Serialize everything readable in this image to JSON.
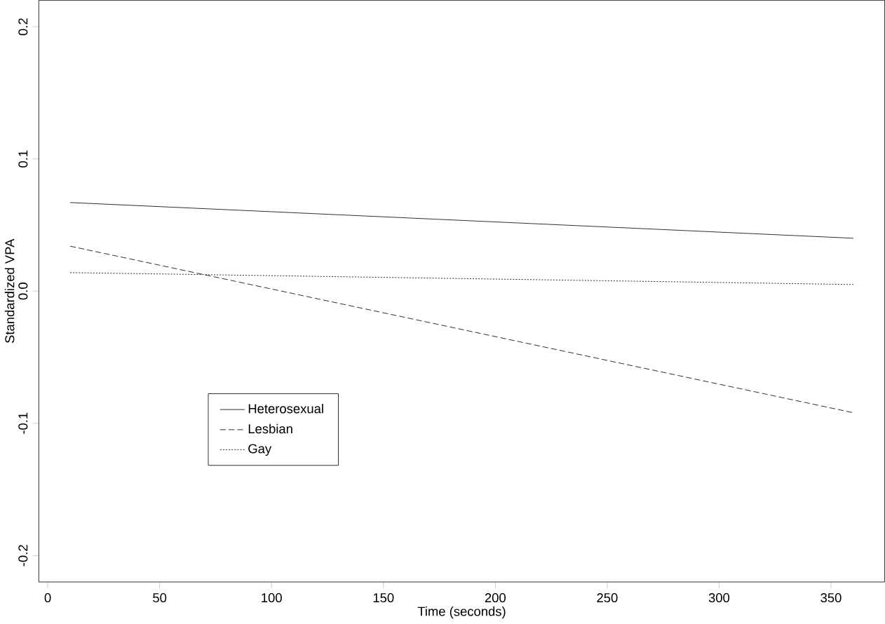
{
  "chart_data": {
    "type": "line",
    "xlabel": "Time (seconds)",
    "ylabel": "Standardized VPA",
    "x": [
      10,
      360
    ],
    "series": [
      {
        "name": "Heterosexual",
        "color": "#000000",
        "line_style": "solid",
        "values": [
          0.067,
          0.04
        ]
      },
      {
        "name": "Lesbian",
        "color": "#000000",
        "line_style": "dashed",
        "values": [
          0.034,
          -0.092
        ]
      },
      {
        "name": "Gay",
        "color": "#000000",
        "line_style": "dotted",
        "values": [
          0.014,
          0.005
        ]
      }
    ],
    "xlim": [
      -4,
      374
    ],
    "ylim": [
      -0.22,
      0.22
    ],
    "xticks": [
      0,
      50,
      100,
      150,
      200,
      250,
      300,
      350
    ],
    "yticks": [
      {
        "value": -0.2,
        "label": "-0.2"
      },
      {
        "value": -0.1,
        "label": "-0.1"
      },
      {
        "value": 0,
        "label": "0.0"
      },
      {
        "value": 0.1,
        "label": "0.1"
      },
      {
        "value": 0.2,
        "label": "0.2"
      }
    ],
    "grid": false,
    "legend": "bottom left",
    "marker": "none"
  }
}
